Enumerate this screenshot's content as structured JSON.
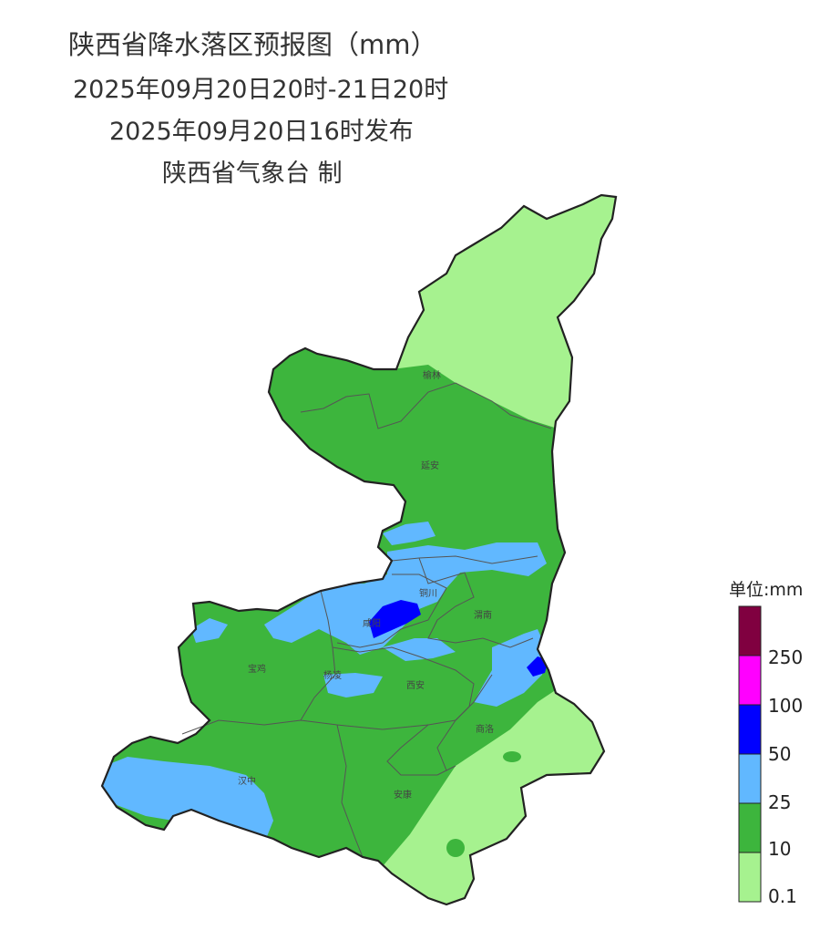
{
  "title": {
    "line1": "陕西省降水落区预报图（mm）",
    "line2": "2025年09月20日20时-21日20时",
    "line3": "2025年09月20日16时发布",
    "line4": "陕西省气象台 制"
  },
  "cities": [
    {
      "name": "榆林"
    },
    {
      "name": "延安"
    },
    {
      "name": "铜川"
    },
    {
      "name": "咸阳"
    },
    {
      "name": "渭南"
    },
    {
      "name": "宝鸡"
    },
    {
      "name": "杨凌"
    },
    {
      "name": "西安"
    },
    {
      "name": "商洛"
    },
    {
      "name": "汉中"
    },
    {
      "name": "安康"
    }
  ],
  "legend": {
    "title": "单位:mm",
    "labels": [
      "250",
      "100",
      "50",
      "25",
      "10",
      "0.1"
    ],
    "colors": {
      "over250": "#800040",
      "100-250": "#ff00ff",
      "50-100": "#0000ff",
      "25-50": "#61b8ff",
      "10-25": "#3db53d",
      "0.1-10": "#a6f28f"
    }
  }
}
